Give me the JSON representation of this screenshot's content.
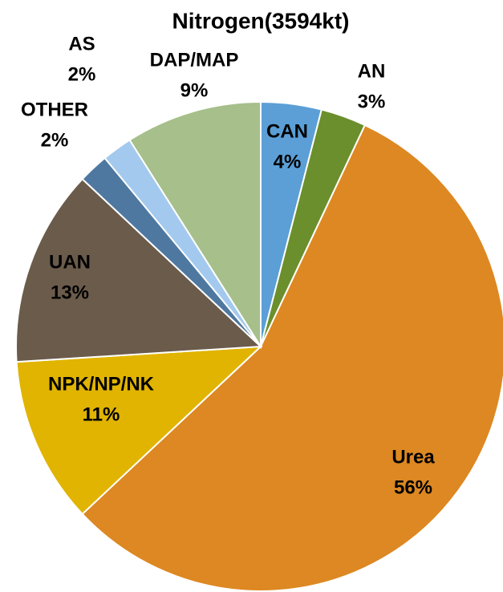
{
  "chart_data": {
    "type": "pie",
    "title": "Nitrogen(3594kt)",
    "categories": [
      "CAN",
      "AN",
      "Urea",
      "NPK/NP/NK",
      "UAN",
      "OTHER",
      "AS",
      "DAP/MAP"
    ],
    "values": [
      4,
      3,
      56,
      11,
      13,
      2,
      2,
      9
    ],
    "value_labels": [
      "4%",
      "3%",
      "56%",
      "11%",
      "13%",
      "2%",
      "2%",
      "9%"
    ],
    "colors": [
      "#5b9fd6",
      "#6b8f2c",
      "#dd8822",
      "#e0b400",
      "#6b5b4b",
      "#4e78a0",
      "#a3c9ee",
      "#a6bf8b"
    ]
  }
}
